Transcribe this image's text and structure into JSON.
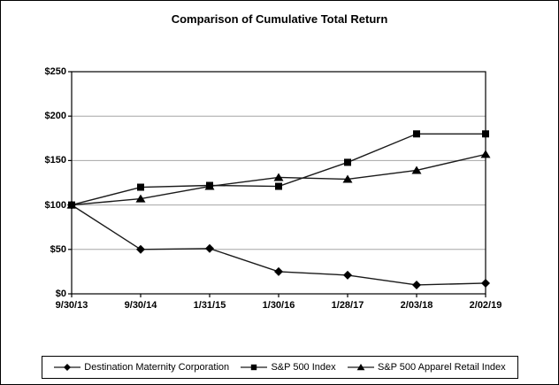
{
  "title": "Comparison of Cumulative Total Return",
  "chart_data": {
    "type": "line",
    "title": "Comparison of Cumulative Total Return",
    "categories": [
      "9/30/13",
      "9/30/14",
      "1/31/15",
      "1/30/16",
      "1/28/17",
      "2/03/18",
      "2/02/19"
    ],
    "series": [
      {
        "name": "Destination Maternity Corporation",
        "marker": "diamond",
        "values": [
          100,
          50,
          51,
          25,
          21,
          10,
          12
        ]
      },
      {
        "name": "S&P 500 Index",
        "marker": "square",
        "values": [
          100,
          120,
          122,
          121,
          148,
          180,
          180
        ]
      },
      {
        "name": "S&P 500 Apparel Retail Index",
        "marker": "triangle",
        "values": [
          100,
          107,
          121,
          131,
          129,
          139,
          157
        ]
      }
    ],
    "xlabel": "",
    "ylabel": "",
    "ylim": [
      0,
      250
    ],
    "ytick_step": 50,
    "ytick_labels": [
      "$0",
      "$50",
      "$100",
      "$150",
      "$200",
      "$250"
    ],
    "grid": true,
    "legend_position": "bottom",
    "colors": {
      "line": "#1a1a1a",
      "marker": "#000000",
      "gridline": "#a6a6a6",
      "axis": "#000000",
      "background": "#ffffff"
    }
  }
}
